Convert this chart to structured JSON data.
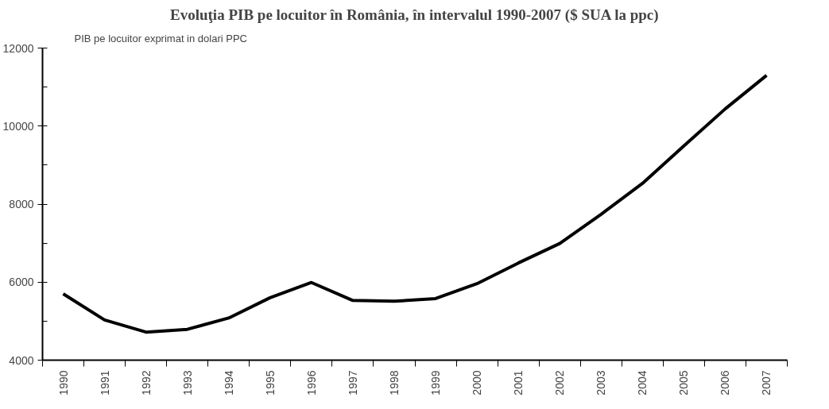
{
  "chart_data": {
    "type": "line",
    "title": "Evoluţia PIB pe locuitor în România, în intervalul 1990-2007 ($ SUA la ppc)",
    "ylabel": "PIB pe locuitor exprimat in dolari PPC",
    "categories": [
      "1990",
      "1991",
      "1992",
      "1993",
      "1994",
      "1995",
      "1996",
      "1997",
      "1998",
      "1999",
      "2000",
      "2001",
      "2002",
      "2003",
      "2004",
      "2005",
      "2006",
      "2007"
    ],
    "series": [
      {
        "color": "#000000",
        "values": [
          5700,
          5030,
          4720,
          4790,
          5080,
          5600,
          5990,
          5530,
          5510,
          5580,
          5960,
          6490,
          6990,
          7740,
          8530,
          9490,
          10440,
          11300
        ]
      }
    ],
    "ylim": [
      4000,
      12000
    ],
    "yticks": [
      4000,
      6000,
      8000,
      10000,
      12000
    ],
    "grid": false,
    "marker": "none",
    "line_style": "solid"
  }
}
